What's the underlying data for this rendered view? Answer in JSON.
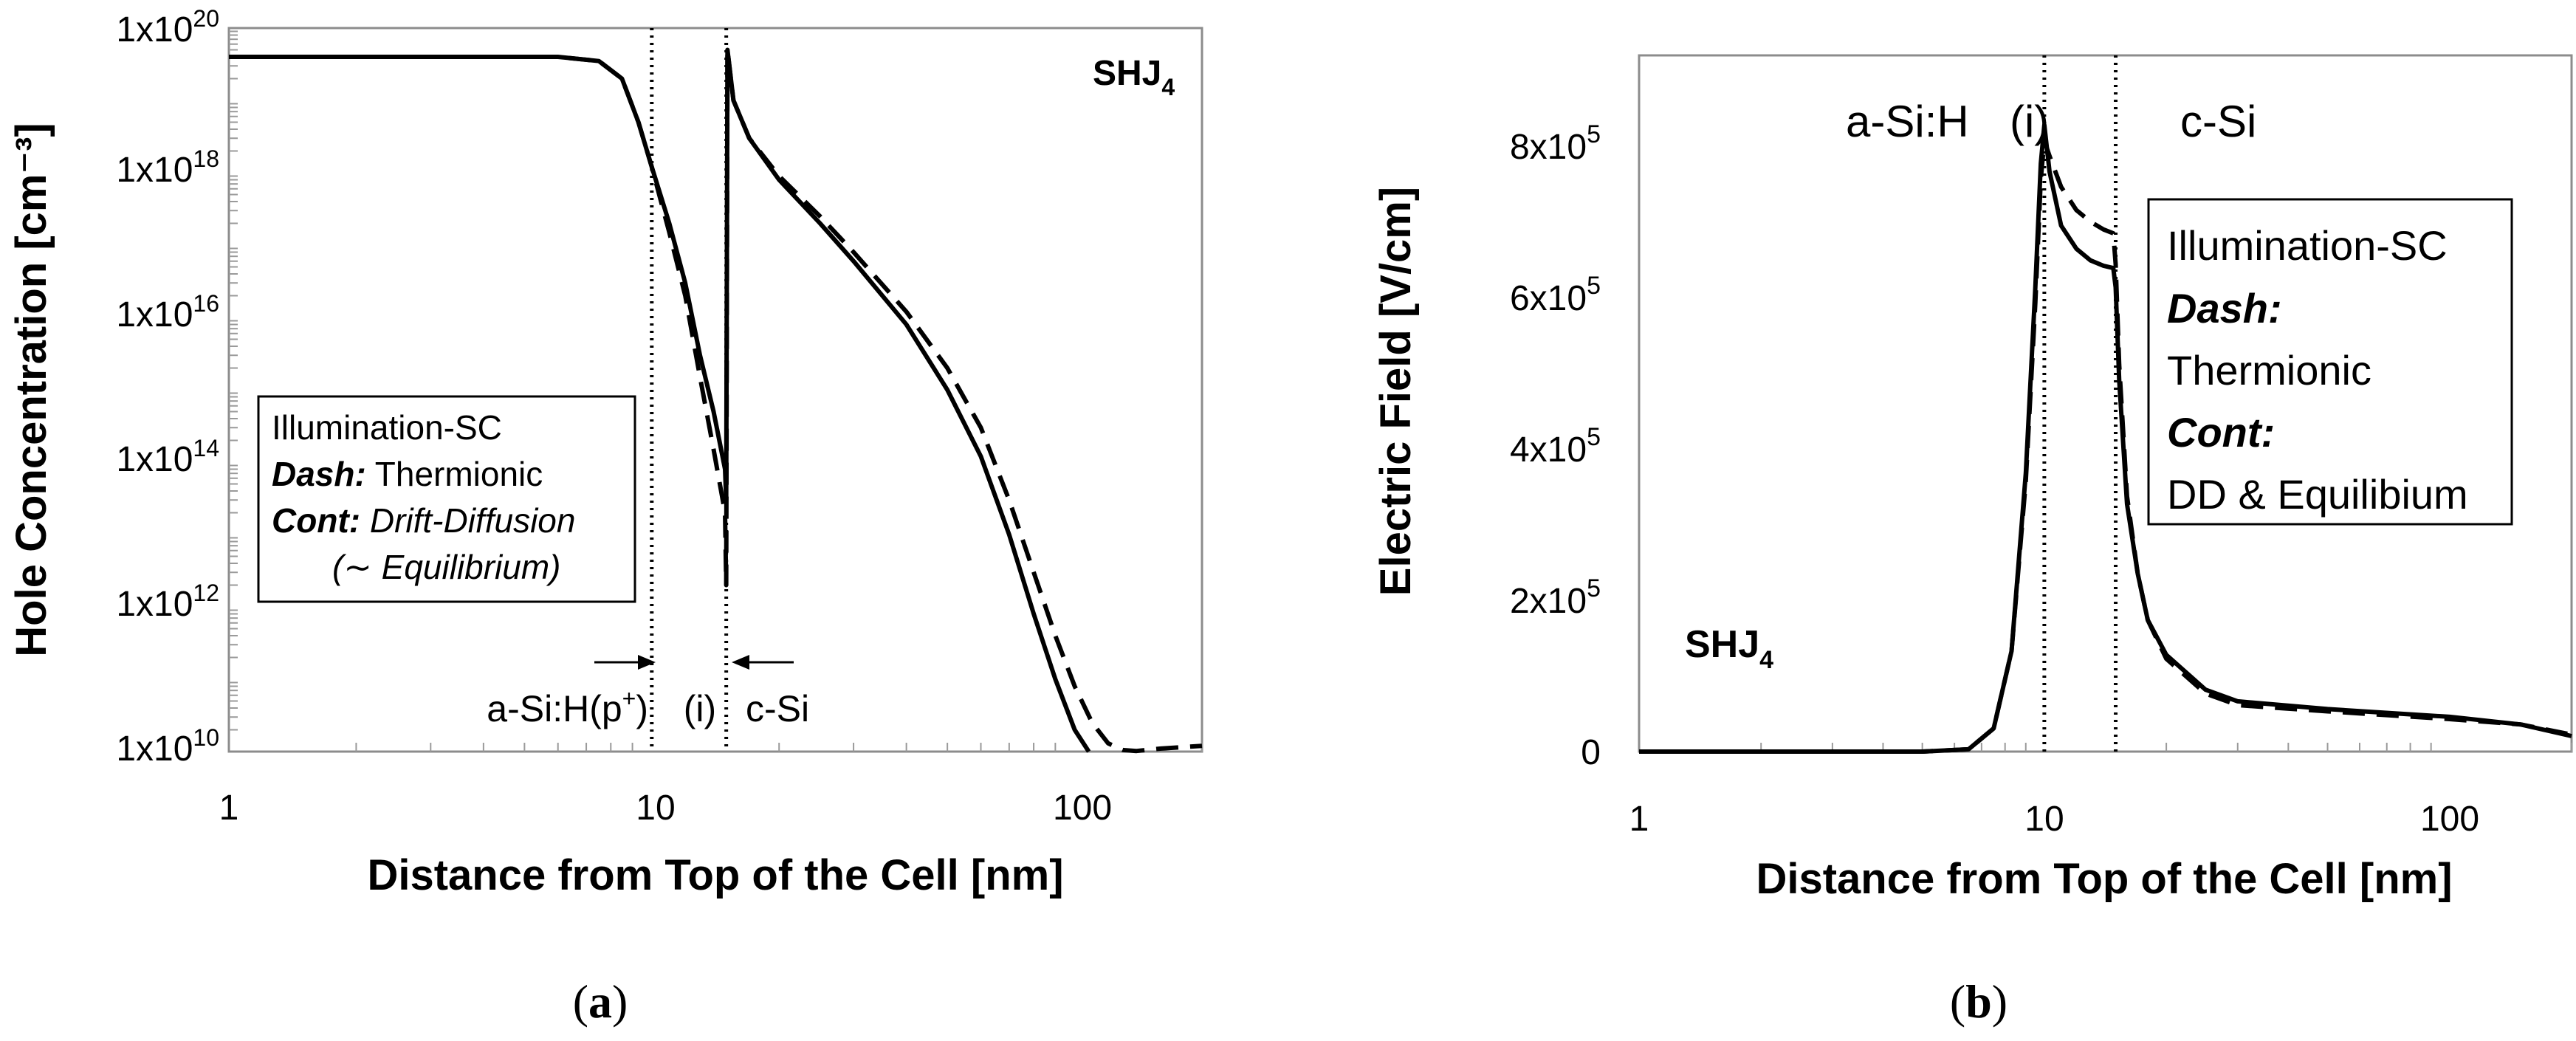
{
  "chart_data": [
    {
      "type": "line",
      "panel_label": "(a)",
      "panel_label_parts": [
        "(",
        "a",
        ")"
      ],
      "xscale": "log",
      "yscale": "log",
      "xlim": [
        1,
        200
      ],
      "ylim": [
        10000000000.0,
        1e+20
      ],
      "xlabel": "Distance from Top of the Cell [nm]",
      "ylabel": "Hole Concentration [cm⁻³]",
      "x_tick_labels": [
        {
          "value": 1,
          "label": "1"
        },
        {
          "value": 10,
          "label": "10"
        },
        {
          "value": 100,
          "label": "100"
        }
      ],
      "y_tick_labels": [
        {
          "value": 10000000000.0,
          "base": "1x10",
          "exp": "10"
        },
        {
          "value": 1000000000000.0,
          "base": "1x10",
          "exp": "12"
        },
        {
          "value": 100000000000000.0,
          "base": "1x10",
          "exp": "14"
        },
        {
          "value": 1e+16,
          "base": "1x10",
          "exp": "16"
        },
        {
          "value": 1e+18,
          "base": "1x10",
          "exp": "18"
        },
        {
          "value": 1e+20,
          "base": "1x10",
          "exp": "20"
        }
      ],
      "title_parts": [
        "SHJ",
        "4"
      ],
      "vlines": [
        10,
        15
      ],
      "legend": {
        "placement": "left-middle",
        "line1": "Illumination-SC",
        "dash_key": "Dash:",
        "dash_val": "Thermionic",
        "cont_key": "Cont:",
        "cont_val": "Drift-Diffusion",
        "cont_val2": "(∼ Equilibrium)"
      },
      "region_labels": {
        "asi": "a-Si:H(p",
        "asi_sup": "+",
        "asi_close": ")",
        "i": "(i)",
        "csi": "c-Si"
      },
      "series": [
        {
          "name": "Thermionic",
          "style": "dashed",
          "points": [
            [
              1,
              4e+19
            ],
            [
              3,
              4e+19
            ],
            [
              6,
              4e+19
            ],
            [
              7.5,
              3.5e+19
            ],
            [
              8.5,
              2e+19
            ],
            [
              9.3,
              5e+18
            ],
            [
              10,
              1.2e+18
            ],
            [
              11,
              1.5e+17
            ],
            [
              12,
              2e+16
            ],
            [
              13,
              1500000000000000.0
            ],
            [
              14,
              150000000000000.0
            ],
            [
              14.9,
              20000000000000.0
            ],
            [
              15,
              2000000000000.0
            ],
            [
              15.1,
              5e+19
            ],
            [
              15.6,
              1e+19
            ],
            [
              17,
              3e+18
            ],
            [
              20,
              9e+17
            ],
            [
              25,
              2.5e+17
            ],
            [
              30,
              8e+16
            ],
            [
              40,
              1.2e+16
            ],
            [
              50,
              2000000000000000.0
            ],
            [
              60,
              300000000000000.0
            ],
            [
              70,
              30000000000000.0
            ],
            [
              80,
              3000000000000.0
            ],
            [
              90,
              400000000000.0
            ],
            [
              100,
              80000000000.0
            ],
            [
              110,
              25000000000.0
            ],
            [
              120,
              13000000000.0
            ],
            [
              130,
              10500000000.0
            ],
            [
              140,
              10200000000.0
            ],
            [
              160,
              11000000000.0
            ],
            [
              200,
              12000000000.0
            ]
          ]
        },
        {
          "name": "Drift-Diffusion",
          "style": "solid",
          "points": [
            [
              1,
              4e+19
            ],
            [
              3,
              4e+19
            ],
            [
              6,
              4e+19
            ],
            [
              7.5,
              3.5e+19
            ],
            [
              8.5,
              2e+19
            ],
            [
              9.3,
              5e+18
            ],
            [
              10,
              1.2e+18
            ],
            [
              11,
              2e+17
            ],
            [
              12,
              3e+16
            ],
            [
              13,
              3000000000000000.0
            ],
            [
              14,
              500000000000000.0
            ],
            [
              14.9,
              80000000000000.0
            ],
            [
              15,
              30000000000000.0
            ],
            [
              15.1,
              5e+19
            ],
            [
              15.6,
              1e+19
            ],
            [
              17,
              3e+18
            ],
            [
              20,
              8e+17
            ],
            [
              25,
              2e+17
            ],
            [
              30,
              6e+16
            ],
            [
              40,
              8000000000000000.0
            ],
            [
              50,
              1000000000000000.0
            ],
            [
              60,
              120000000000000.0
            ],
            [
              70,
              10000000000000.0
            ],
            [
              80,
              800000000000.0
            ],
            [
              90,
              100000000000.0
            ],
            [
              100,
              20000000000.0
            ],
            [
              108,
              10000000000.0
            ]
          ]
        }
      ]
    },
    {
      "type": "line",
      "panel_label": "(b)",
      "panel_label_parts": [
        "(",
        "b",
        ")"
      ],
      "xscale": "log",
      "yscale": "linear",
      "xlim": [
        1,
        200
      ],
      "ylim": [
        0,
        900000
      ],
      "xlabel": "Distance from Top of the Cell [nm]",
      "ylabel": "Electric Field [V/cm]",
      "x_tick_labels": [
        {
          "value": 1,
          "label": "1"
        },
        {
          "value": 10,
          "label": "10"
        },
        {
          "value": 100,
          "label": "100"
        }
      ],
      "y_tick_labels": [
        {
          "value": 0,
          "base": "0",
          "exp": ""
        },
        {
          "value": 200000,
          "base": "2x10",
          "exp": "5"
        },
        {
          "value": 400000,
          "base": "4x10",
          "exp": "5"
        },
        {
          "value": 600000,
          "base": "6x10",
          "exp": "5"
        },
        {
          "value": 800000,
          "base": "8x10",
          "exp": "5"
        }
      ],
      "title_parts": [
        "SHJ",
        "4"
      ],
      "vlines": [
        10,
        15
      ],
      "legend": {
        "placement": "right",
        "line1": "Illumination-SC",
        "dash_key": "Dash:",
        "dash_val": "Thermionic",
        "cont_key": "Cont:",
        "cont_val": "DD & Equilibium"
      },
      "region_labels": {
        "asi": "a-Si:H",
        "i": "(i)",
        "csi": "c-Si"
      },
      "series": [
        {
          "name": "Thermionic",
          "style": "dashed",
          "points": [
            [
              1,
              0
            ],
            [
              5,
              0
            ],
            [
              6.5,
              3000
            ],
            [
              7.5,
              30000
            ],
            [
              8.3,
              130000
            ],
            [
              9,
              350000
            ],
            [
              9.5,
              580000
            ],
            [
              9.8,
              740000
            ],
            [
              10,
              790000
            ],
            [
              10.3,
              770000
            ],
            [
              11,
              730000
            ],
            [
              12,
              700000
            ],
            [
              13,
              685000
            ],
            [
              14,
              675000
            ],
            [
              14.8,
              670000
            ],
            [
              15,
              630000
            ],
            [
              15.3,
              500000
            ],
            [
              16,
              330000
            ],
            [
              17,
              230000
            ],
            [
              18,
              170000
            ],
            [
              20,
              120000
            ],
            [
              25,
              75000
            ],
            [
              30,
              60000
            ],
            [
              50,
              52000
            ],
            [
              100,
              42000
            ],
            [
              150,
              35000
            ],
            [
              200,
              22000
            ]
          ]
        },
        {
          "name": "Drift-Diffusion",
          "style": "solid",
          "points": [
            [
              1,
              0
            ],
            [
              5,
              0
            ],
            [
              6.5,
              3000
            ],
            [
              7.5,
              30000
            ],
            [
              8.3,
              130000
            ],
            [
              9,
              360000
            ],
            [
              9.5,
              600000
            ],
            [
              9.8,
              760000
            ],
            [
              10,
              810000
            ],
            [
              10.3,
              750000
            ],
            [
              11,
              680000
            ],
            [
              12,
              650000
            ],
            [
              13,
              635000
            ],
            [
              14,
              628000
            ],
            [
              14.8,
              625000
            ],
            [
              15,
              600000
            ],
            [
              15.3,
              480000
            ],
            [
              16,
              320000
            ],
            [
              17,
              230000
            ],
            [
              18,
              170000
            ],
            [
              20,
              125000
            ],
            [
              25,
              80000
            ],
            [
              30,
              65000
            ],
            [
              50,
              55000
            ],
            [
              100,
              45000
            ],
            [
              150,
              35000
            ],
            [
              200,
              20000
            ]
          ]
        }
      ]
    }
  ]
}
